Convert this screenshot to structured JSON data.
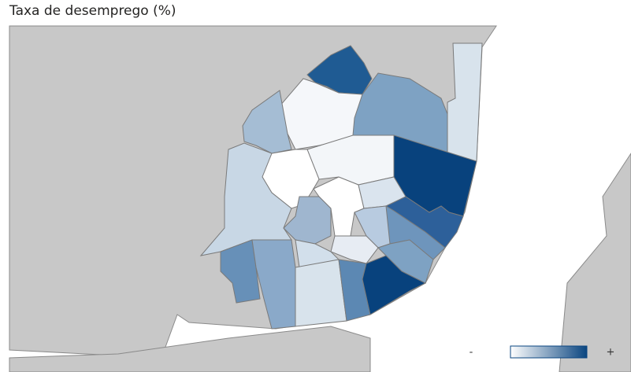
{
  "title": "Taxa de desemprego (%)",
  "legend": {
    "low": "-",
    "high": "+"
  }
}
